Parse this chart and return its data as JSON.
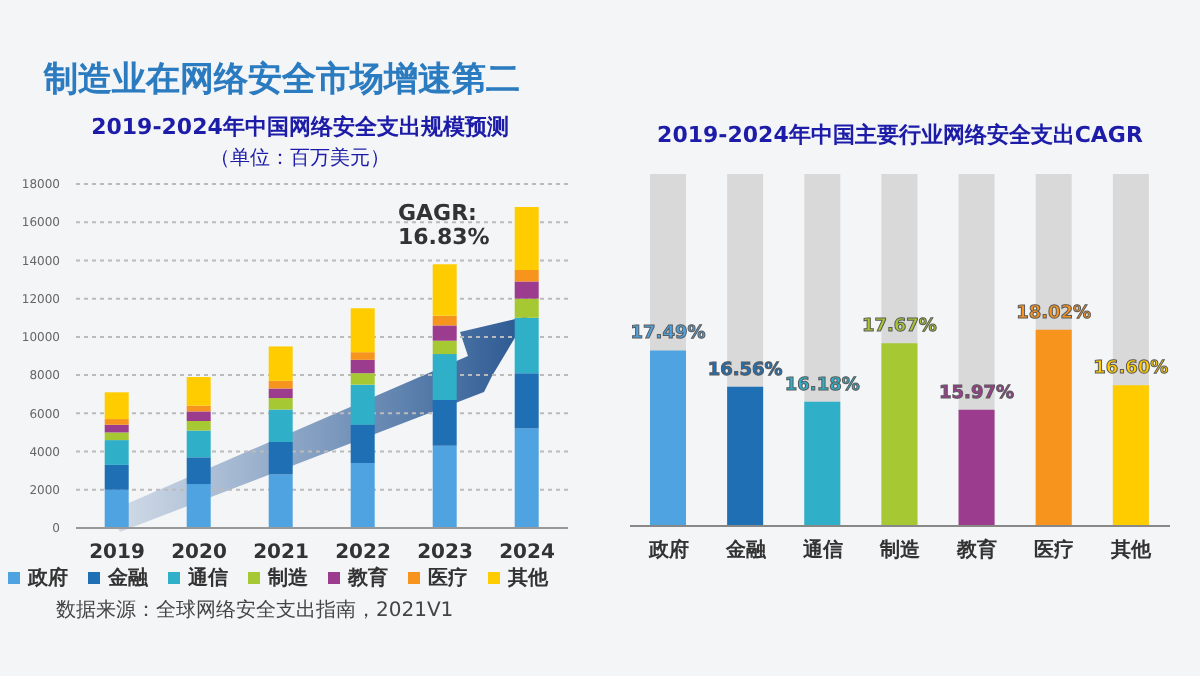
{
  "chart_data": [
    {
      "type": "other",
      "title": "制造业在网络安全市场增速第二"
    },
    {
      "type": "bar",
      "title": "2019-2024年中国网络安全支出规模预测",
      "subtitle": "（单位：百万美元）",
      "stacked": true,
      "categories": [
        "2019",
        "2020",
        "2021",
        "2022",
        "2023",
        "2024"
      ],
      "series": [
        {
          "name": "政府",
          "color": "#4fa3e0",
          "values": [
            2000,
            2300,
            2800,
            3400,
            4300,
            5200
          ]
        },
        {
          "name": "金融",
          "color": "#1f6fb5",
          "values": [
            1300,
            1400,
            1700,
            2000,
            2400,
            2900
          ]
        },
        {
          "name": "通信",
          "color": "#2fb0c8",
          "values": [
            1300,
            1400,
            1700,
            2100,
            2400,
            2900
          ]
        },
        {
          "name": "制造",
          "color": "#a6c832",
          "values": [
            400,
            500,
            600,
            600,
            700,
            1000
          ]
        },
        {
          "name": "教育",
          "color": "#9b3c8e",
          "values": [
            400,
            500,
            500,
            700,
            800,
            900
          ]
        },
        {
          "name": "医疗",
          "color": "#f7941d",
          "values": [
            300,
            300,
            400,
            400,
            500,
            600
          ]
        },
        {
          "name": "其他",
          "color": "#ffcc00",
          "values": [
            1400,
            1500,
            1800,
            2300,
            2700,
            3300
          ]
        }
      ],
      "ylim": [
        0,
        18000
      ],
      "yticks": [
        0,
        2000,
        4000,
        6000,
        8000,
        10000,
        12000,
        14000,
        16000,
        18000
      ],
      "grid": "y",
      "legend": "bottom",
      "annotations": [
        "GAGR: 16.83%",
        "数据来源：全球网络安全支出指南，2021V1"
      ]
    },
    {
      "type": "bar",
      "title": "2019-2024年中国主要行业网络安全支出CAGR",
      "categories": [
        "政府",
        "金融",
        "通信",
        "制造",
        "教育",
        "医疗",
        "其他"
      ],
      "values": [
        17.49,
        16.56,
        16.18,
        17.67,
        15.97,
        18.02,
        16.6
      ],
      "value_labels": [
        "17.49%",
        "16.56%",
        "16.18%",
        "17.67%",
        "15.97%",
        "18.02%",
        "16.60%"
      ],
      "colors": [
        "#4fa3e0",
        "#1f6fb5",
        "#2fb0c8",
        "#a6c832",
        "#9b3c8e",
        "#f7941d",
        "#ffcc00"
      ],
      "ylim": [
        13,
        22
      ],
      "tick_labels": "x"
    }
  ]
}
